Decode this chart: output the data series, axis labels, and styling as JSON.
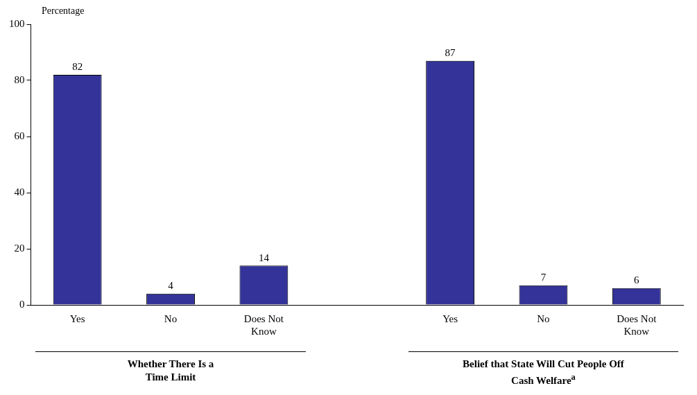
{
  "chart_data": {
    "type": "bar",
    "ylabel": "Percentage",
    "categories": [
      "Yes",
      "No",
      "Does Not Know",
      null,
      "Yes",
      "No",
      "Does Not Know"
    ],
    "values": [
      82,
      4,
      14,
      null,
      87,
      7,
      6
    ],
    "color": "#333399",
    "ylim": [
      0,
      100
    ],
    "yticks": [
      0,
      20,
      40,
      60,
      80,
      100
    ],
    "grid": false,
    "legend": false,
    "data_labels": true,
    "annotations": [
      "Whether There Is a Time Limit",
      "Belief that State Will Cut People Off Cash Welfare$^{a}$"
    ]
  }
}
